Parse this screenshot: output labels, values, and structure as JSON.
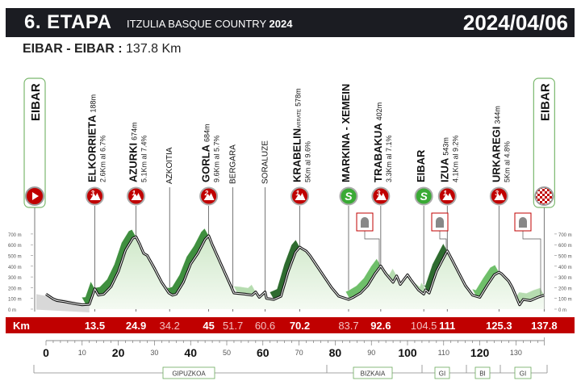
{
  "header": {
    "stage": "6. ETAPA",
    "race": "ITZULIA BASQUE COUNTRY",
    "year": "2024",
    "date": "2024/04/06",
    "route": "EIBAR - EIBAR :",
    "distance": "137.8 Km"
  },
  "colors": {
    "red": "#c00000",
    "green": "#3aaa35",
    "dark": "#1b1c22"
  },
  "chart_data": {
    "type": "area",
    "title": "6. ETAPA ITZULIA BASQUE COUNTRY 2024",
    "xlabel": "Km",
    "ylabel": "m",
    "xlim": [
      0,
      137.8
    ],
    "ylim": [
      0,
      700
    ],
    "y_ticks": [
      "0 m",
      "100 m",
      "200 m",
      "300 m",
      "400 m",
      "500 m",
      "600 m",
      "700 m"
    ],
    "x_ticks_major": [
      "0",
      "20",
      "40",
      "60",
      "80",
      "100",
      "120"
    ],
    "x_ticks_minor": [
      "10",
      "30",
      "50",
      "70",
      "90",
      "110",
      "130"
    ],
    "profile": [
      [
        0,
        140
      ],
      [
        2,
        95
      ],
      [
        3,
        80
      ],
      [
        5,
        70
      ],
      [
        8,
        50
      ],
      [
        10,
        40
      ],
      [
        12,
        45
      ],
      [
        13.5,
        190
      ],
      [
        14.5,
        130
      ],
      [
        16,
        140
      ],
      [
        18,
        210
      ],
      [
        20,
        350
      ],
      [
        22,
        550
      ],
      [
        24,
        660
      ],
      [
        24.9,
        674
      ],
      [
        26,
        600
      ],
      [
        27,
        520
      ],
      [
        28,
        500
      ],
      [
        30,
        380
      ],
      [
        32,
        250
      ],
      [
        34,
        150
      ],
      [
        35,
        130
      ],
      [
        36,
        140
      ],
      [
        38,
        250
      ],
      [
        40,
        420
      ],
      [
        42,
        520
      ],
      [
        44,
        650
      ],
      [
        45,
        684
      ],
      [
        46,
        600
      ],
      [
        48,
        450
      ],
      [
        50,
        300
      ],
      [
        52,
        150
      ],
      [
        55,
        140
      ],
      [
        57,
        130
      ],
      [
        58,
        160
      ],
      [
        59,
        110
      ],
      [
        60.6,
        160
      ],
      [
        61,
        100
      ],
      [
        63,
        90
      ],
      [
        65,
        120
      ],
      [
        67,
        350
      ],
      [
        69,
        530
      ],
      [
        70.2,
        578
      ],
      [
        71,
        560
      ],
      [
        72,
        540
      ],
      [
        73,
        500
      ],
      [
        75,
        400
      ],
      [
        77,
        300
      ],
      [
        79,
        200
      ],
      [
        81,
        120
      ],
      [
        83.7,
        90
      ],
      [
        85,
        110
      ],
      [
        87,
        150
      ],
      [
        89,
        220
      ],
      [
        91,
        330
      ],
      [
        92.6,
        402
      ],
      [
        94,
        330
      ],
      [
        96,
        250
      ],
      [
        97,
        310
      ],
      [
        98,
        230
      ],
      [
        100,
        320
      ],
      [
        101,
        270
      ],
      [
        103,
        180
      ],
      [
        104.5,
        140
      ],
      [
        105,
        180
      ],
      [
        106,
        150
      ],
      [
        108,
        350
      ],
      [
        110,
        480
      ],
      [
        111,
        543
      ],
      [
        112,
        480
      ],
      [
        114,
        350
      ],
      [
        116,
        220
      ],
      [
        118,
        130
      ],
      [
        120,
        110
      ],
      [
        122,
        220
      ],
      [
        124,
        320
      ],
      [
        125.3,
        344
      ],
      [
        126,
        330
      ],
      [
        128,
        260
      ],
      [
        129,
        200
      ],
      [
        131,
        40
      ],
      [
        132,
        90
      ],
      [
        134,
        80
      ],
      [
        136,
        110
      ],
      [
        137.8,
        130
      ]
    ],
    "climb_segments": [
      [
        11,
        13.5
      ],
      [
        14.5,
        24.9
      ],
      [
        34.5,
        45
      ],
      [
        53,
        58
      ],
      [
        63,
        70.2
      ],
      [
        84,
        92.6
      ],
      [
        94,
        97
      ],
      [
        102,
        105
      ],
      [
        105.5,
        111
      ],
      [
        119,
        125.3
      ],
      [
        131,
        137.8
      ]
    ],
    "km_bar": [
      {
        "km": "13.5",
        "bold": true
      },
      {
        "km": "24.9",
        "bold": true
      },
      {
        "km": "34.2",
        "bold": false
      },
      {
        "km": "45",
        "bold": true
      },
      {
        "km": "51.7",
        "bold": false
      },
      {
        "km": "60.6",
        "bold": false
      },
      {
        "km": "70.2",
        "bold": true
      },
      {
        "km": "83.7",
        "bold": false
      },
      {
        "km": "92.6",
        "bold": true
      },
      {
        "km": "104.5",
        "bold": false
      },
      {
        "km": "111",
        "bold": true
      },
      {
        "km": "125.3",
        "bold": true
      },
      {
        "km": "137.8",
        "bold": true
      }
    ],
    "km_bar_label": "Km",
    "points": [
      {
        "km": 13.5,
        "name": "ELKORRIETA",
        "alt": "188m",
        "info": "2.6Km al 6.7%",
        "type": "cat",
        "cat": "3"
      },
      {
        "km": 24.9,
        "name": "AZURKI",
        "alt": "674m",
        "info": "5.1Km al 7.4%",
        "type": "cat",
        "cat": "1"
      },
      {
        "km": 34.2,
        "name": "AZKOITIA",
        "alt": "",
        "info": "",
        "type": "town"
      },
      {
        "km": 45,
        "name": "GORLA",
        "alt": "684m",
        "info": "9.6Km al 5.7%",
        "type": "cat",
        "cat": "2"
      },
      {
        "km": 51.7,
        "name": "BERGARA",
        "alt": "",
        "info": "",
        "type": "town"
      },
      {
        "km": 60.6,
        "name": "SORALUZE",
        "alt": "",
        "info": "",
        "type": "town"
      },
      {
        "km": 70.2,
        "name": "KRABELIN",
        "sub": "ARRATE",
        "alt": "578m",
        "info": "5Km al 9.6%",
        "type": "cat",
        "cat": "1"
      },
      {
        "km": 83.7,
        "name": "MARKINA - XEMEIN",
        "alt": "",
        "info": "",
        "type": "sprint",
        "cat": "S"
      },
      {
        "km": 92.6,
        "name": "TRABAKUA",
        "alt": "402m",
        "info": "3.3Km al 7.1%",
        "type": "cat",
        "cat": "3"
      },
      {
        "km": 104.5,
        "name": "EIBAR",
        "alt": "",
        "info": "",
        "type": "sprint",
        "cat": "S"
      },
      {
        "km": 111,
        "name": "IZUA",
        "alt": "543m",
        "info": "4.1Km al 9.2%",
        "type": "cat",
        "cat": "1"
      },
      {
        "km": 125.3,
        "name": "URKAREGI",
        "alt": "344m",
        "info": "5Km al 4.8%",
        "type": "cat",
        "cat": "3"
      }
    ],
    "start": {
      "name": "EIBAR"
    },
    "finish": {
      "name": "EIBAR"
    },
    "provinces": [
      "GIPUZKOA",
      "BIZKAIA",
      "GI",
      "BI",
      "GI"
    ]
  }
}
